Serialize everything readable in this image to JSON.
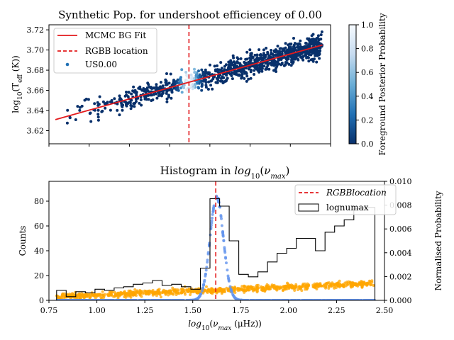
{
  "chart_data": [
    {
      "type": "scatter",
      "title": "Synthetic Pop. for undershoot efficiency of 0.00",
      "title_printed": "Synthetic Pop. for undershoot efficiencey of 0.00",
      "ylabel": "log10(Teff (K))",
      "xlim": [
        0.75,
        2.5
      ],
      "ylim": [
        3.607,
        3.725
      ],
      "yticks": [
        "3.62",
        "3.64",
        "3.66",
        "3.68",
        "3.70",
        "3.72"
      ],
      "x_tick_labels_shown": false,
      "legend": {
        "placement": "top-left",
        "entries": [
          "MCMC BG Fit",
          "RGBB location",
          "US0.00"
        ]
      },
      "fit_line": {
        "name": "MCMC BG Fit",
        "color": "#e31a1c",
        "x": [
          0.79,
          2.45
        ],
        "y": [
          3.631,
          3.705
        ]
      },
      "rgbb_location": {
        "name": "RGBB location",
        "x": 1.62,
        "color": "#e31a1c"
      },
      "scatter": {
        "name": "US0.00",
        "x_range": [
          0.79,
          2.45
        ],
        "y_relation": "y ≈ 3.631 + 0.0446·(x − 0.79) ± 0.01",
        "approx_points": 1000,
        "color_meaning": "Foreground Posterior Probability (peaks near x = 1.62)"
      },
      "colorbar": {
        "label": "Foreground Posterior Probability",
        "range": [
          0.0,
          1.0
        ],
        "ticks": [
          "0.0",
          "0.2",
          "0.4",
          "0.6",
          "0.8",
          "1.0"
        ],
        "colormap": "Blues (0 = dark navy, 1 = near white)"
      }
    },
    {
      "type": "histogram",
      "title": "Histogram in log10(νmax)",
      "xlabel": "log10(νmax (μHz))",
      "ylabel": "Counts",
      "ylabel_right": "Normalised Probability",
      "xlim": [
        0.75,
        2.5
      ],
      "ylim": [
        0,
        96
      ],
      "ylim_right": [
        0,
        0.01
      ],
      "xticks": [
        "0.75",
        "1.00",
        "1.25",
        "1.50",
        "1.75",
        "2.00",
        "2.25",
        "2.50"
      ],
      "yticks": [
        "0",
        "20",
        "40",
        "60",
        "80"
      ],
      "yticks_right": [
        "0.000",
        "0.002",
        "0.004",
        "0.006",
        "0.008",
        "0.010"
      ],
      "legend": {
        "placement": "top-right",
        "entries": [
          "RGBBlocation",
          "lognumax"
        ]
      },
      "rgbb_location": {
        "x": 1.62,
        "color": "#e31a1c"
      },
      "histogram": {
        "name": "lognumax",
        "bin_edges": [
          0.79,
          0.84,
          0.89,
          0.94,
          0.99,
          1.04,
          1.09,
          1.14,
          1.19,
          1.24,
          1.29,
          1.34,
          1.39,
          1.44,
          1.49,
          1.54,
          1.59,
          1.64,
          1.69,
          1.74,
          1.79,
          1.84,
          1.89,
          1.94,
          1.99,
          2.04,
          2.09,
          2.14,
          2.19,
          2.24,
          2.29,
          2.34,
          2.39,
          2.45
        ],
        "counts": [
          8,
          3,
          7,
          6,
          9,
          8,
          10,
          11,
          13,
          14,
          16,
          12,
          13,
          11,
          9,
          26,
          82,
          76,
          48,
          21,
          19,
          23,
          31,
          38,
          42,
          50,
          50,
          40,
          55,
          60,
          65,
          74,
          75
        ]
      },
      "probability_curve": {
        "color": "#6495ed",
        "mu": 1.625,
        "sigma": 0.035,
        "peak": 0.0088,
        "baseline": 0.0
      },
      "background_points": {
        "color": "#ffa500",
        "x_range": [
          0.79,
          2.45
        ],
        "y_start": 0.0003,
        "y_end": 0.0014,
        "spread": 0.0002
      }
    }
  ]
}
